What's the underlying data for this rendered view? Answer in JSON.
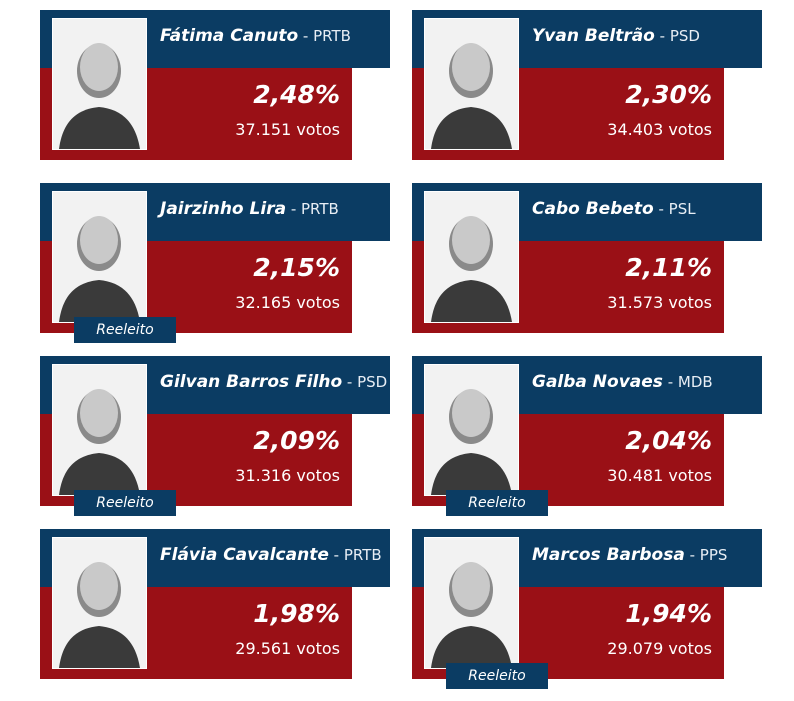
{
  "candidates": [
    {
      "name": "Fátima Canuto",
      "separator": " - ",
      "party": "PRTB",
      "percent": "2,48%",
      "votes": "37.151 votos",
      "reelected": false,
      "badge": ""
    },
    {
      "name": "Yvan Beltrão",
      "separator": " - ",
      "party": "PSD",
      "percent": "2,30%",
      "votes": "34.403 votos",
      "reelected": false,
      "badge": ""
    },
    {
      "name": "Jairzinho Lira",
      "separator": " - ",
      "party": "PRTB",
      "percent": "2,15%",
      "votes": "32.165 votos",
      "reelected": true,
      "badge": "Reeleito"
    },
    {
      "name": "Cabo Bebeto",
      "separator": " - ",
      "party": "PSL",
      "percent": "2,11%",
      "votes": "31.573 votos",
      "reelected": false,
      "badge": ""
    },
    {
      "name": "Gilvan Barros Filho",
      "separator": " - ",
      "party": "PSD",
      "percent": "2,09%",
      "votes": "31.316 votos",
      "reelected": true,
      "badge": "Reeleito"
    },
    {
      "name": "Galba Novaes",
      "separator": " - ",
      "party": "MDB",
      "percent": "2,04%",
      "votes": "30.481 votos",
      "reelected": true,
      "badge": "Reeleito"
    },
    {
      "name": "Flávia Cavalcante",
      "separator": " - ",
      "party": "PRTB",
      "percent": "1,98%",
      "votes": "29.561 votos",
      "reelected": false,
      "badge": ""
    },
    {
      "name": "Marcos Barbosa",
      "separator": " - ",
      "party": "PPS",
      "percent": "1,94%",
      "votes": "29.079 votos",
      "reelected": true,
      "badge": "Reeleito"
    }
  ],
  "colors": {
    "header_blue": "#0b3c63",
    "result_red": "#9a1016",
    "text": "#ffffff"
  }
}
